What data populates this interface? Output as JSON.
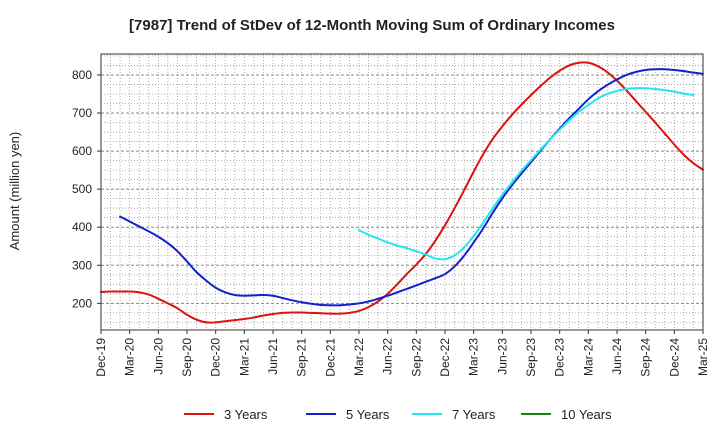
{
  "chart_data": {
    "type": "line",
    "title": "[7987]  Trend of StDev of 12-Month Moving Sum of Ordinary Incomes",
    "ylabel": "Amount (million yen)",
    "xlabel": "",
    "ylim": [
      130,
      855
    ],
    "yticks": [
      200,
      300,
      400,
      500,
      600,
      700,
      800
    ],
    "x_ticks": [
      "Dec-19",
      "Mar-20",
      "Jun-20",
      "Sep-20",
      "Dec-20",
      "Mar-21",
      "Jun-21",
      "Sep-21",
      "Dec-21",
      "Mar-22",
      "Jun-22",
      "Sep-22",
      "Dec-22",
      "Mar-23",
      "Jun-23",
      "Sep-23",
      "Dec-23",
      "Mar-24",
      "Jun-24",
      "Sep-24",
      "Dec-24",
      "Mar-25"
    ],
    "grid": true,
    "legend_position": "bottom",
    "series": [
      {
        "name": "3 Years",
        "color": "#dd1111",
        "start_index": 0,
        "values": [
          230,
          231,
          231,
          231,
          229,
          223,
          212,
          200,
          187,
          170,
          157,
          150,
          150,
          153,
          156,
          159,
          163,
          168,
          172,
          175,
          176,
          176,
          175,
          174,
          173,
          173,
          175,
          180,
          190,
          205,
          225,
          250,
          277,
          302,
          330,
          365,
          405,
          450,
          497,
          546,
          592,
          632,
          665,
          695,
          722,
          747,
          771,
          793,
          811,
          825,
          832,
          832,
          823,
          807,
          785,
          759,
          731,
          703,
          675,
          646,
          617,
          590,
          568,
          551
        ]
      },
      {
        "name": "5 Years",
        "color": "#1122cc",
        "start_index": 2,
        "values": [
          428,
          415,
          402,
          389,
          375,
          358,
          337,
          310,
          282,
          260,
          241,
          229,
          222,
          220,
          221,
          222,
          220,
          214,
          208,
          203,
          199,
          196,
          195,
          195,
          197,
          200,
          205,
          212,
          220,
          229,
          238,
          247,
          257,
          266,
          277,
          297,
          325,
          360,
          397,
          438,
          476,
          510,
          541,
          571,
          601,
          631,
          659,
          686,
          711,
          736,
          757,
          774,
          788,
          800,
          808,
          813,
          815,
          815,
          813,
          810,
          806,
          803
        ]
      },
      {
        "name": "7 Years",
        "color": "#22e5ee",
        "start_index": 27,
        "values": [
          392,
          380,
          370,
          360,
          352,
          345,
          337,
          328,
          318,
          316,
          326,
          347,
          377,
          412,
          450,
          485,
          517,
          548,
          576,
          604,
          631,
          656,
          681,
          703,
          721,
          738,
          750,
          758,
          763,
          765,
          765,
          763,
          760,
          756,
          751,
          747
        ]
      },
      {
        "name": "10 Years",
        "color": "#118811",
        "start_index": 0,
        "values": []
      }
    ]
  }
}
